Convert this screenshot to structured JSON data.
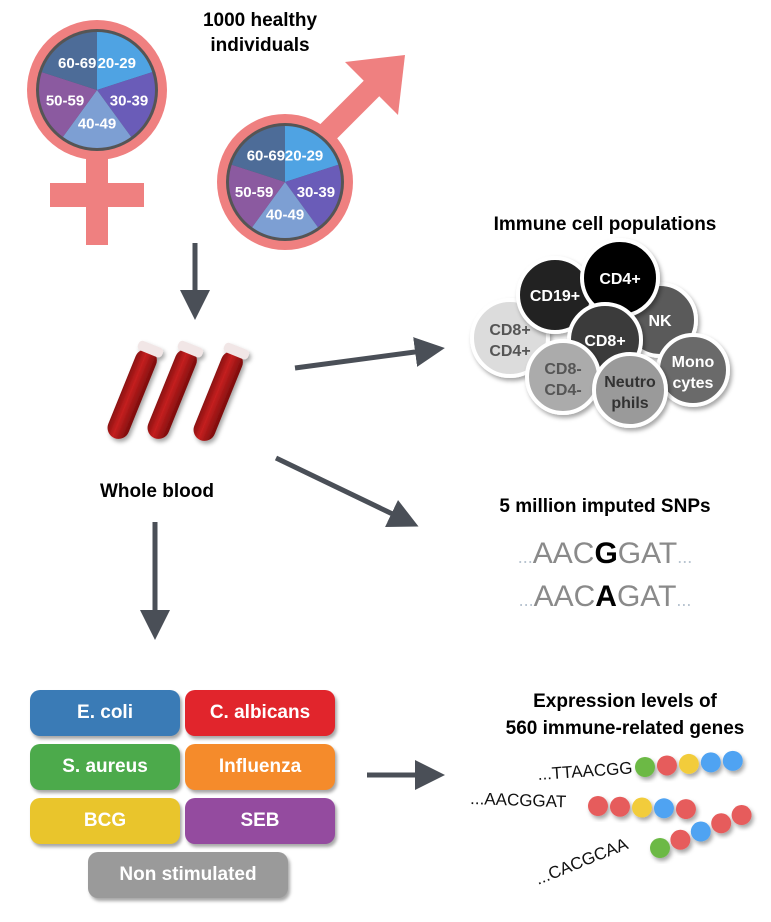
{
  "cohort": {
    "title_line1": "1000 healthy",
    "title_line2": "individuals",
    "age_groups": [
      {
        "label": "20-29",
        "color": "#4fa3e3"
      },
      {
        "label": "30-39",
        "color": "#6a5cb8"
      },
      {
        "label": "40-49",
        "color": "#7d9fd3"
      },
      {
        "label": "50-59",
        "color": "#8b5aa0"
      },
      {
        "label": "60-69",
        "color": "#4d6c98"
      }
    ],
    "symbol_color": "#ef8080"
  },
  "sample": {
    "label": "Whole blood"
  },
  "immune_cells": {
    "title": "Immune cell populations",
    "cells": [
      {
        "line1": "CD8+",
        "line2": "CD4+",
        "fill": "#dcdcdc",
        "text": "#555"
      },
      {
        "line1": "CD19+",
        "line2": "",
        "fill": "#222222",
        "text": "#fff"
      },
      {
        "line1": "NK",
        "line2": "",
        "fill": "#5a5a5a",
        "text": "#fff"
      },
      {
        "line1": "CD4+",
        "line2": "",
        "fill": "#000000",
        "text": "#fff"
      },
      {
        "line1": "CD8+",
        "line2": "",
        "fill": "#3a3a3a",
        "text": "#fff"
      },
      {
        "line1": "CD8-",
        "line2": "CD4-",
        "fill": "#ababab",
        "text": "#555"
      },
      {
        "line1": "Mono",
        "line2": "cytes",
        "fill": "#6a6a6a",
        "text": "#fff"
      },
      {
        "line1": "Neutro",
        "line2": "phils",
        "fill": "#9a9a9a",
        "text": "#333"
      }
    ]
  },
  "snps": {
    "title": "5 million imputed SNPs",
    "rows": [
      {
        "prefix": "...",
        "left": "AAC",
        "variant": "G",
        "right": "GAT",
        "suffix": "..."
      },
      {
        "prefix": "...",
        "left": "AAC",
        "variant": "A",
        "right": "GAT",
        "suffix": "..."
      }
    ]
  },
  "stimuli": [
    {
      "label": "E. coli",
      "color": "#3a7bb6"
    },
    {
      "label": "C. albicans",
      "color": "#e1252c"
    },
    {
      "label": "S. aureus",
      "color": "#4caa4b"
    },
    {
      "label": "Influenza",
      "color": "#f58b2b"
    },
    {
      "label": "BCG",
      "color": "#e9c52c"
    },
    {
      "label": "SEB",
      "color": "#944b9f"
    },
    {
      "label": "Non stimulated",
      "color": "#9a9a9a"
    }
  ],
  "expression": {
    "title_line1": "Expression levels of",
    "title_line2": "560 immune-related genes",
    "rows": [
      {
        "sequence": "...TTAACGG",
        "beads": [
          "#6cb944",
          "#e65b5b",
          "#f2cc3b",
          "#4fa3f2",
          "#4fa3f2"
        ]
      },
      {
        "sequence": "...AACGGAT",
        "beads": [
          "#e65b5b",
          "#e65b5b",
          "#f2cc3b",
          "#4fa3f2",
          "#e65b5b"
        ]
      },
      {
        "sequence": "...CACGCAA",
        "beads": [
          "#6cb944",
          "#e65b5b",
          "#4fa3f2",
          "#e65b5b",
          "#e65b5b"
        ]
      }
    ]
  }
}
